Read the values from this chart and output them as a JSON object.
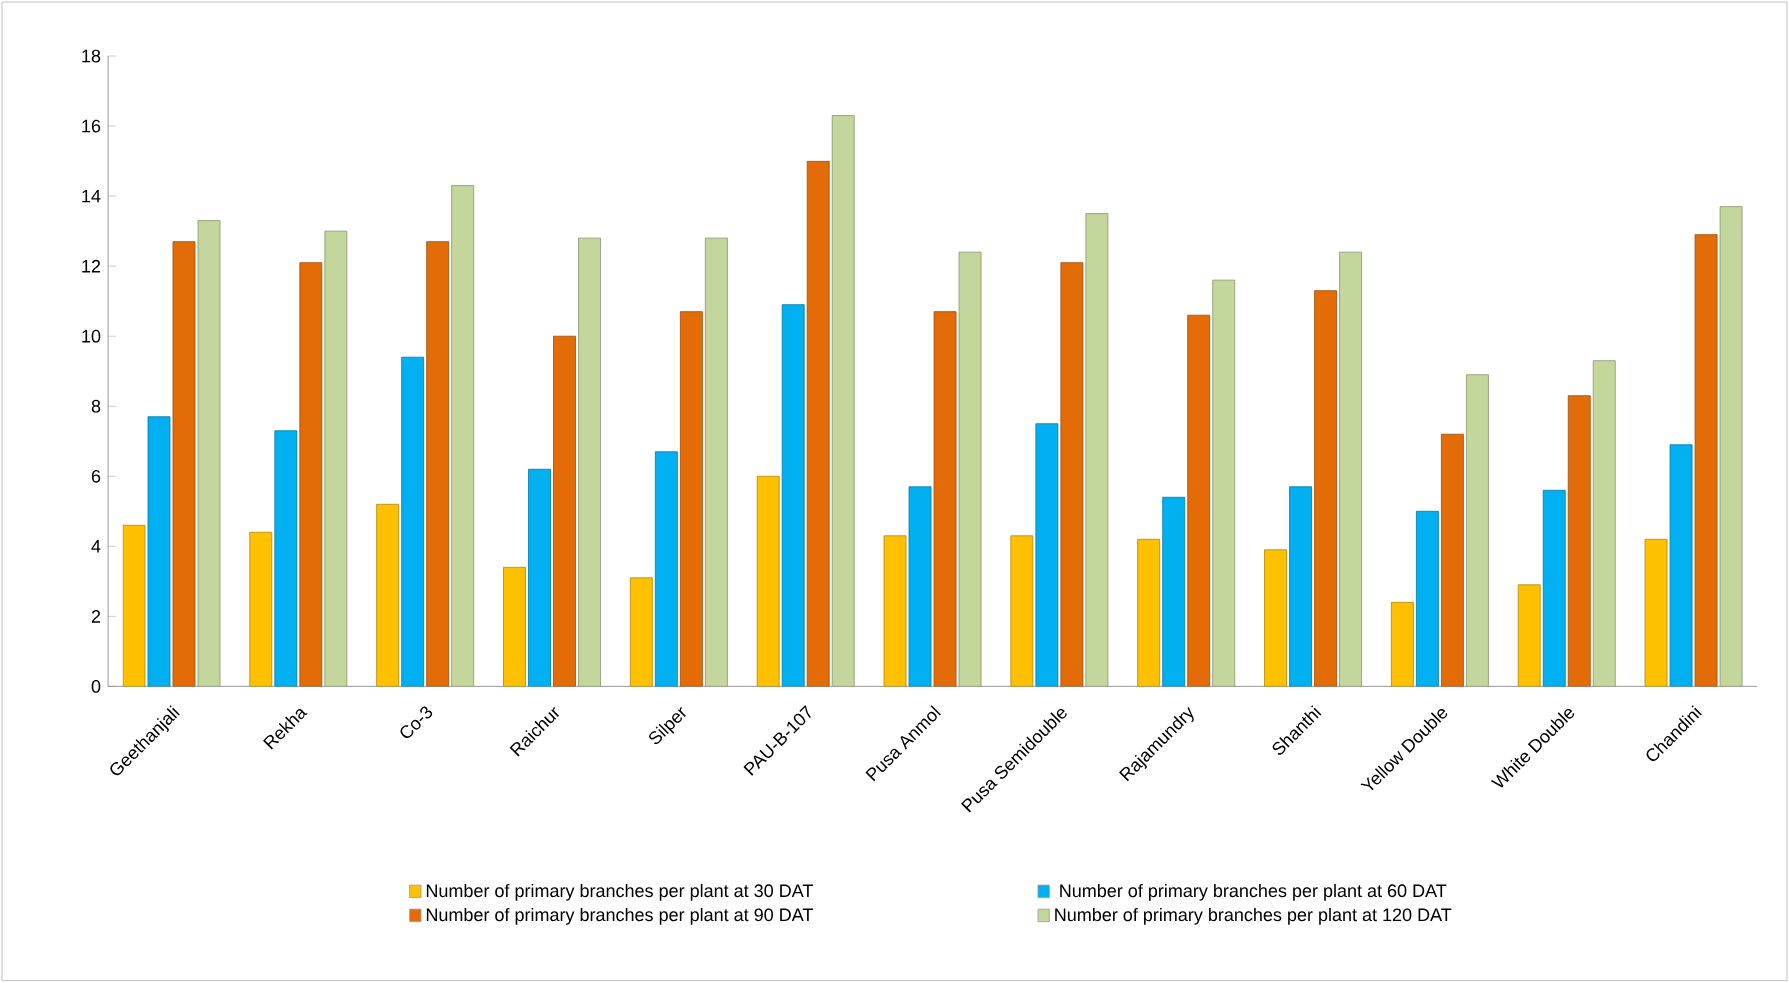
{
  "chart_data": {
    "type": "bar",
    "categories": [
      "Geethanjali",
      "Rekha",
      "Co-3",
      "Raichur",
      "Silper",
      "PAU-B-107",
      "Pusa Anmol",
      "Pusa Semidouble",
      "Rajamundry",
      "Shanthi",
      "Yellow Double",
      "White Double",
      "Chandini"
    ],
    "series": [
      {
        "name": "Number of primary branches per plant at 30 DAT",
        "color": "#ffc000",
        "values": [
          4.6,
          4.4,
          5.2,
          3.4,
          3.1,
          6.0,
          4.3,
          4.3,
          4.2,
          3.9,
          2.4,
          2.9,
          4.2
        ]
      },
      {
        "name": "Number of primary branches per plant at 60 DAT",
        "color": "#00b0f0",
        "values": [
          7.7,
          7.3,
          9.4,
          6.2,
          6.7,
          10.9,
          5.7,
          7.5,
          5.4,
          5.7,
          5.0,
          5.6,
          6.9
        ]
      },
      {
        "name": "Number of primary branches per plant at 90 DAT",
        "color": "#e36c09",
        "values": [
          12.7,
          12.1,
          12.7,
          10.0,
          10.7,
          15.0,
          10.7,
          12.1,
          10.6,
          11.3,
          7.2,
          8.3,
          12.9
        ]
      },
      {
        "name": "Number of primary branches per plant at 120 DAT",
        "color": "#c3d69b",
        "values": [
          13.3,
          13.0,
          14.3,
          12.8,
          12.8,
          16.3,
          12.4,
          13.5,
          11.6,
          12.4,
          8.9,
          9.3,
          13.7
        ]
      }
    ],
    "ylim": [
      0,
      18
    ],
    "yticks": [
      0,
      2,
      4,
      6,
      8,
      10,
      12,
      14,
      16,
      18
    ],
    "grid": false,
    "legend": "bottom"
  }
}
